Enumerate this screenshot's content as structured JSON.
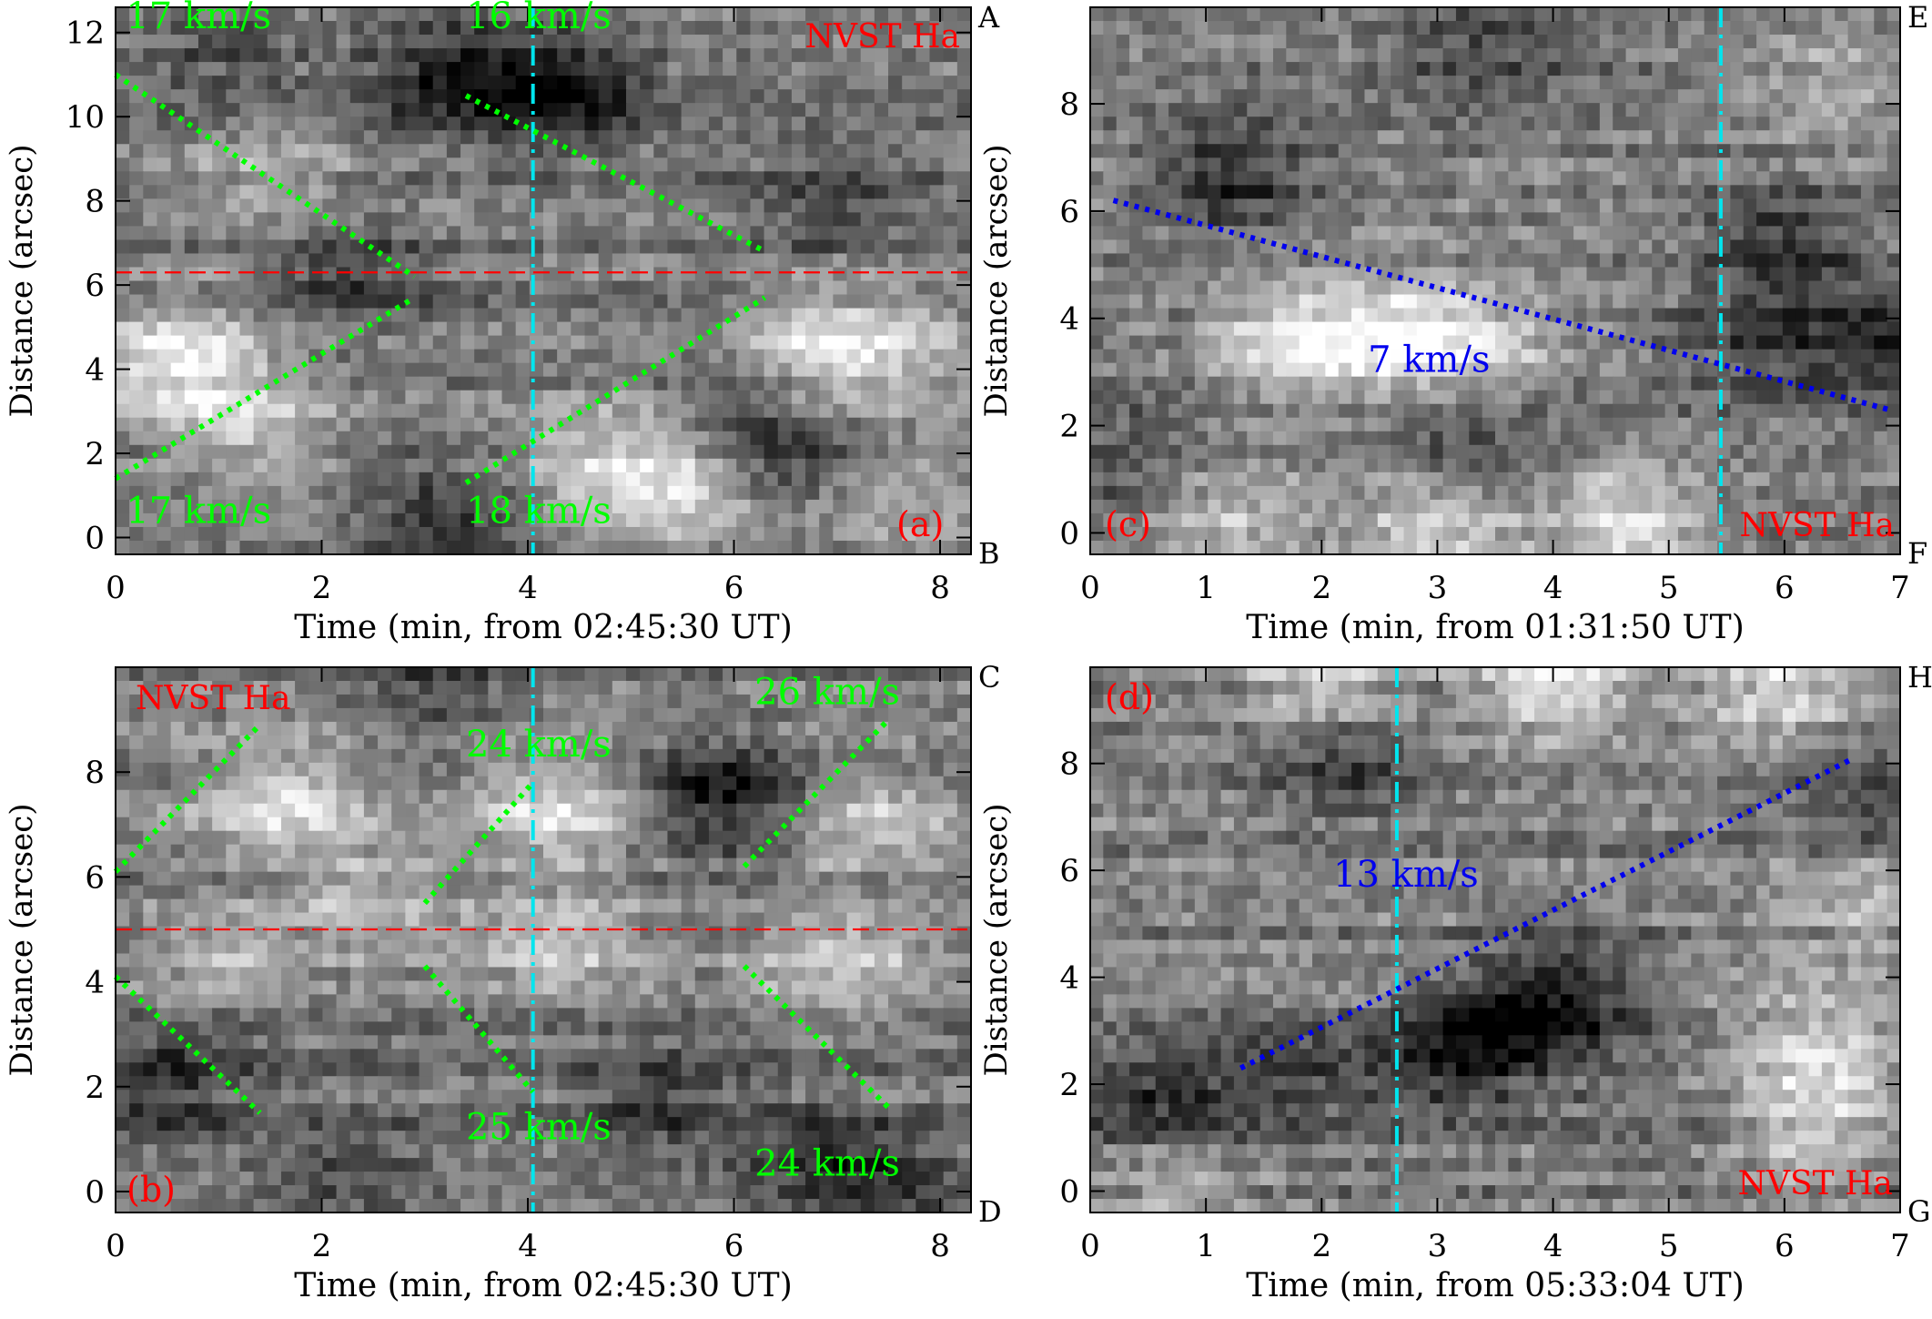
{
  "colors": {
    "background": "#ffffff",
    "axis": "#000000",
    "fit_green": "#00ff00",
    "fit_blue": "#0000ee",
    "marker_cyan": "#00e5ee",
    "reference_red": "#ff0000",
    "label_red": "#ff0000"
  },
  "chart_data": [
    {
      "type": "heatmap",
      "panel_label": "(a)",
      "instrument_label": "NVST Ha",
      "xlabel": "Time (min, from 02:45:30 UT)",
      "ylabel": "Distance (arcsec)",
      "xlim": [
        0,
        8.3
      ],
      "ylim": [
        -0.4,
        12.6
      ],
      "xticks": [
        0,
        2,
        4,
        6,
        8
      ],
      "xtick_labels": [
        "0",
        "2",
        "4",
        "6",
        "8"
      ],
      "yticks": [
        0,
        2,
        4,
        6,
        8,
        10,
        12
      ],
      "ytick_labels": [
        "0",
        "2",
        "4",
        "6",
        "8",
        "10",
        "12"
      ],
      "corner_labels": {
        "top": "A",
        "bottom": "B"
      },
      "vline_x": 4.05,
      "hline_y": 6.3,
      "hot_spots": [
        [
          0.6,
          4.2,
          1.0
        ],
        [
          1.3,
          2.5,
          0.6
        ],
        [
          5.4,
          1.2,
          1.0
        ],
        [
          4.5,
          1.8,
          0.5
        ],
        [
          7.4,
          4.5,
          0.6
        ],
        [
          6.8,
          4.6,
          0.5
        ],
        [
          1.5,
          8.5,
          0.4
        ],
        [
          7.6,
          1.0,
          0.4
        ]
      ],
      "dark_spots": [
        [
          4.3,
          10.6,
          1.0
        ],
        [
          3.2,
          11.0,
          0.8
        ],
        [
          2.2,
          6.3,
          0.6
        ],
        [
          6.3,
          2.2,
          0.7
        ],
        [
          3.2,
          0.4,
          0.6
        ],
        [
          7.0,
          8.0,
          0.5
        ],
        [
          1.0,
          11.6,
          0.4
        ]
      ],
      "fit_lines": [
        {
          "x": [
            0.0,
            2.9
          ],
          "y": [
            11.0,
            6.2
          ],
          "speed_label": "17 km/s",
          "label_pos": [
            0.1,
            12.1
          ],
          "color": "#00ff00"
        },
        {
          "x": [
            3.4,
            6.3
          ],
          "y": [
            10.5,
            6.8
          ],
          "speed_label": "16 km/s",
          "label_pos": [
            3.4,
            12.1
          ],
          "color": "#00ff00"
        },
        {
          "x": [
            0.0,
            2.9
          ],
          "y": [
            1.4,
            5.7
          ],
          "speed_label": "17 km/s",
          "label_pos": [
            0.1,
            0.35
          ],
          "color": "#00ff00"
        },
        {
          "x": [
            3.4,
            6.3
          ],
          "y": [
            1.3,
            5.7
          ],
          "speed_label": "18 km/s",
          "label_pos": [
            3.4,
            0.35
          ],
          "color": "#00ff00"
        }
      ]
    },
    {
      "type": "heatmap",
      "panel_label": "(b)",
      "instrument_label": "NVST Ha",
      "xlabel": "Time (min, from 02:45:30 UT)",
      "ylabel": "Distance (arcsec)",
      "xlim": [
        0,
        8.3
      ],
      "ylim": [
        -0.4,
        10.0
      ],
      "xticks": [
        0,
        2,
        4,
        6,
        8
      ],
      "xtick_labels": [
        "0",
        "2",
        "4",
        "6",
        "8"
      ],
      "yticks": [
        0,
        2,
        4,
        6,
        8
      ],
      "ytick_labels": [
        "0",
        "2",
        "4",
        "6",
        "8"
      ],
      "corner_labels": {
        "top": "C",
        "bottom": "D"
      },
      "vline_x": 4.05,
      "hline_y": 5.0,
      "hot_spots": [
        [
          1.6,
          7.4,
          0.8
        ],
        [
          4.3,
          7.3,
          0.8
        ],
        [
          7.3,
          7.0,
          0.6
        ],
        [
          7.0,
          4.3,
          0.7
        ],
        [
          4.3,
          4.7,
          0.6
        ],
        [
          2.5,
          5.5,
          0.5
        ],
        [
          1.0,
          4.5,
          0.4
        ]
      ],
      "dark_spots": [
        [
          5.9,
          7.5,
          1.0
        ],
        [
          0.5,
          2.0,
          0.7
        ],
        [
          3.0,
          9.6,
          0.5
        ],
        [
          5.2,
          1.7,
          0.6
        ],
        [
          6.8,
          0.6,
          0.6
        ],
        [
          7.6,
          0.2,
          0.5
        ],
        [
          2.2,
          0.5,
          0.5
        ]
      ],
      "fit_lines": [
        {
          "x": [
            0.0,
            1.4
          ],
          "y": [
            6.1,
            8.9
          ],
          "speed_label": "",
          "label_pos": [
            0,
            0
          ],
          "color": "#00ff00"
        },
        {
          "x": [
            3.0,
            4.05
          ],
          "y": [
            5.5,
            7.8
          ],
          "speed_label": "24 km/s",
          "label_pos": [
            3.4,
            8.3
          ],
          "color": "#00ff00"
        },
        {
          "x": [
            6.1,
            7.5
          ],
          "y": [
            6.2,
            9.0
          ],
          "speed_label": "26 km/s",
          "label_pos": [
            6.2,
            9.3
          ],
          "color": "#00ff00"
        },
        {
          "x": [
            0.0,
            1.4
          ],
          "y": [
            4.1,
            1.5
          ],
          "speed_label": "",
          "label_pos": [
            0,
            0
          ],
          "color": "#00ff00"
        },
        {
          "x": [
            3.0,
            4.05
          ],
          "y": [
            4.3,
            1.9
          ],
          "speed_label": "25 km/s",
          "label_pos": [
            3.4,
            1.0
          ],
          "color": "#00ff00"
        },
        {
          "x": [
            6.1,
            7.5
          ],
          "y": [
            4.3,
            1.6
          ],
          "speed_label": "24 km/s",
          "label_pos": [
            6.2,
            0.3
          ],
          "color": "#00ff00"
        }
      ]
    },
    {
      "type": "heatmap",
      "panel_label": "(c)",
      "instrument_label": "NVST Ha",
      "xlabel": "Time (min, from 01:31:50 UT)",
      "ylabel": "Distance (arcsec)",
      "xlim": [
        0,
        7.0
      ],
      "ylim": [
        -0.4,
        9.8
      ],
      "xticks": [
        0,
        1,
        2,
        3,
        4,
        5,
        6,
        7
      ],
      "xtick_labels": [
        "0",
        "1",
        "2",
        "3",
        "4",
        "5",
        "6",
        "7"
      ],
      "yticks": [
        0,
        2,
        4,
        6,
        8
      ],
      "ytick_labels": [
        "0",
        "2",
        "4",
        "6",
        "8"
      ],
      "corner_labels": {
        "top": "E",
        "bottom": "F"
      },
      "vline_x": 5.45,
      "hot_spots": [
        [
          1.7,
          3.6,
          0.9
        ],
        [
          2.6,
          3.6,
          0.9
        ],
        [
          3.4,
          3.5,
          0.7
        ],
        [
          3.0,
          0.2,
          0.9
        ],
        [
          4.6,
          0.15,
          0.9
        ],
        [
          1.2,
          0.2,
          0.6
        ],
        [
          6.4,
          8.3,
          0.5
        ]
      ],
      "dark_spots": [
        [
          1.2,
          6.6,
          0.8
        ],
        [
          6.0,
          5.5,
          0.7
        ],
        [
          6.8,
          3.6,
          0.6
        ],
        [
          3.2,
          1.4,
          0.6
        ],
        [
          5.9,
          3.8,
          0.6
        ],
        [
          0.3,
          1.2,
          0.4
        ],
        [
          3.4,
          9.2,
          0.5
        ]
      ],
      "fit_lines": [
        {
          "x": [
            0.2,
            6.9
          ],
          "y": [
            6.2,
            2.3
          ],
          "speed_label": "7 km/s",
          "label_pos": [
            2.4,
            3.0
          ],
          "color": "#0000ee"
        }
      ]
    },
    {
      "type": "heatmap",
      "panel_label": "(d)",
      "instrument_label": "NVST Ha",
      "xlabel": "Time (min, from 05:33:04 UT)",
      "ylabel": "Distance (arcsec)",
      "xlim": [
        0,
        7.0
      ],
      "ylim": [
        -0.4,
        9.8
      ],
      "xticks": [
        0,
        1,
        2,
        3,
        4,
        5,
        6,
        7
      ],
      "xtick_labels": [
        "0",
        "1",
        "2",
        "3",
        "4",
        "5",
        "6",
        "7"
      ],
      "yticks": [
        0,
        2,
        4,
        6,
        8
      ],
      "ytick_labels": [
        "0",
        "2",
        "4",
        "6",
        "8"
      ],
      "corner_labels": {
        "top": "H",
        "bottom": "G"
      },
      "vline_x": 2.65,
      "hot_spots": [
        [
          6.3,
          2.6,
          0.8
        ],
        [
          6.3,
          1.1,
          0.7
        ],
        [
          4.0,
          9.5,
          0.9
        ],
        [
          6.0,
          9.4,
          0.8
        ],
        [
          2.0,
          9.6,
          0.7
        ],
        [
          6.7,
          5.5,
          0.5
        ],
        [
          0.7,
          0.3,
          0.5
        ]
      ],
      "dark_spots": [
        [
          3.7,
          3.2,
          0.9
        ],
        [
          3.0,
          2.6,
          0.7
        ],
        [
          2.2,
          8.0,
          0.6
        ],
        [
          0.6,
          1.5,
          0.7
        ],
        [
          6.7,
          7.2,
          0.6
        ],
        [
          4.2,
          3.8,
          0.6
        ],
        [
          1.6,
          2.3,
          0.5
        ]
      ],
      "fit_lines": [
        {
          "x": [
            1.3,
            6.6
          ],
          "y": [
            2.3,
            8.1
          ],
          "speed_label": "13 km/s",
          "label_pos": [
            2.1,
            5.7
          ],
          "color": "#0000ee"
        }
      ]
    }
  ]
}
